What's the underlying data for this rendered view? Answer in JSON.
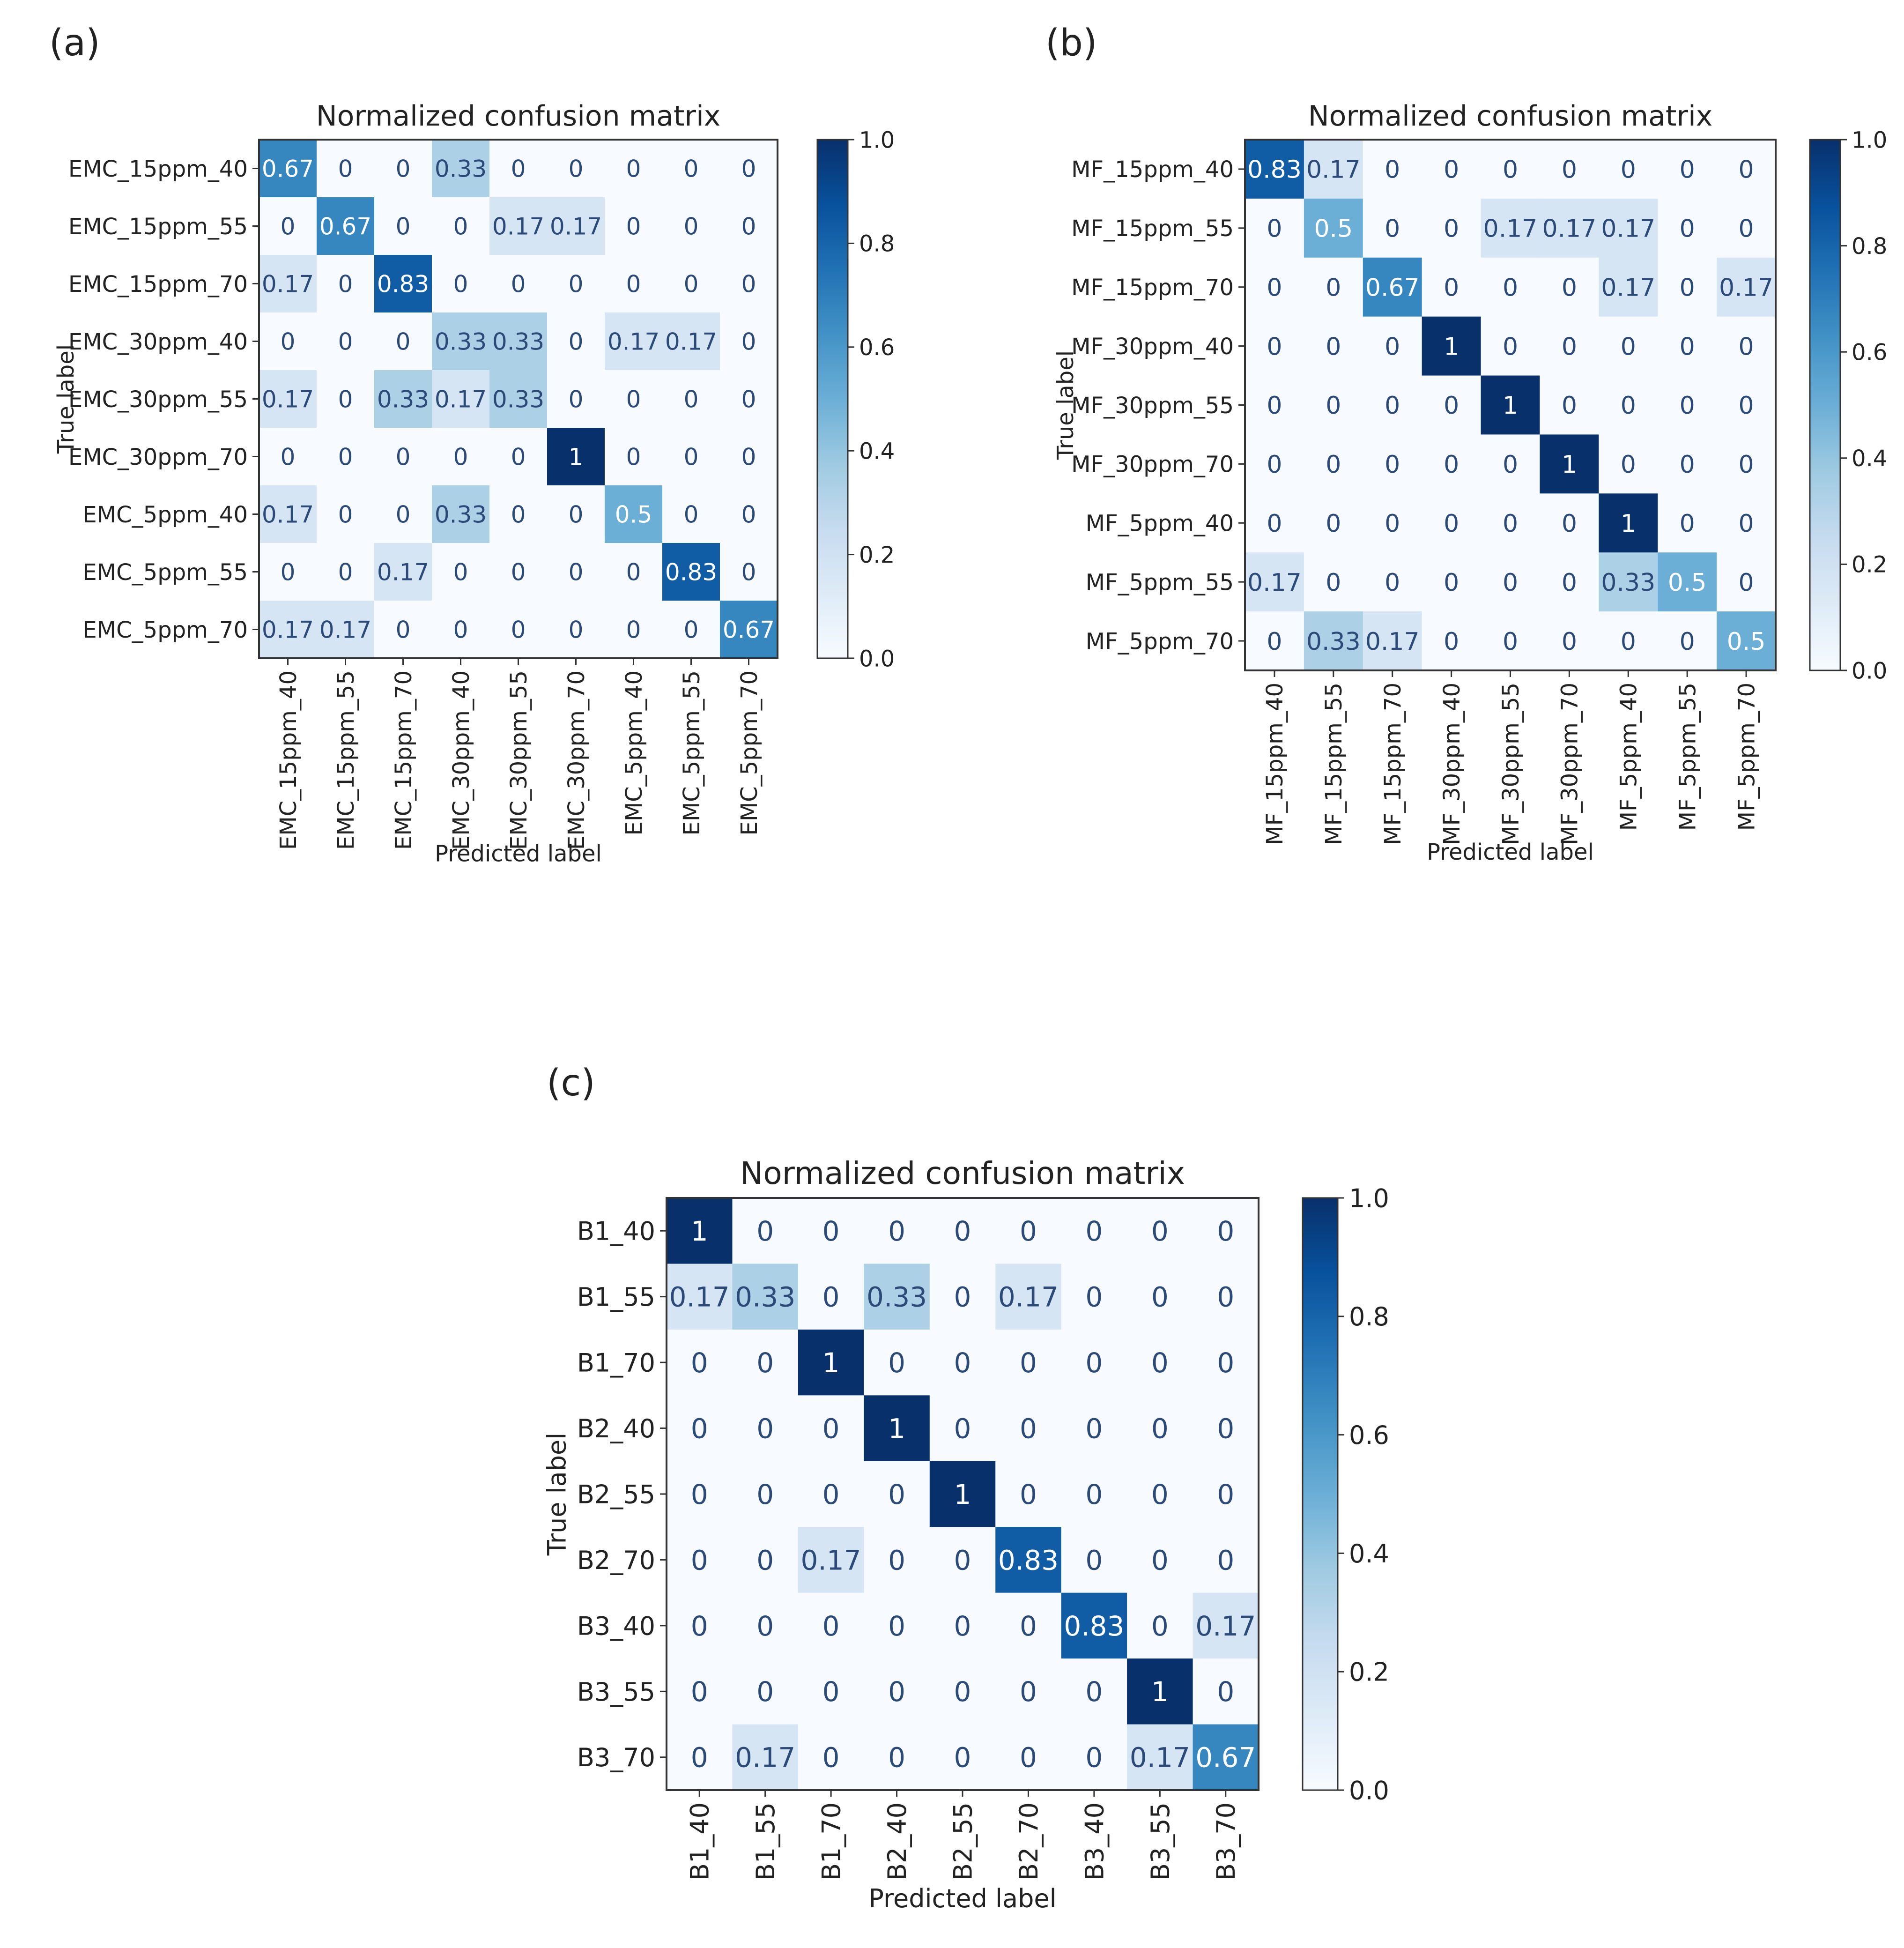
{
  "panels": [
    {
      "panel_label": "(a)",
      "chart_data": {
        "type": "heatmap",
        "title": "Normalized confusion matrix",
        "xlabel": "Predicted label",
        "ylabel": "True label",
        "x_categories": [
          "EMC_15ppm_40",
          "EMC_15ppm_55",
          "EMC_15ppm_70",
          "EMC_30ppm_40",
          "EMC_30ppm_55",
          "EMC_30ppm_70",
          "EMC_5ppm_40",
          "EMC_5ppm_55",
          "EMC_5ppm_70"
        ],
        "y_categories": [
          "EMC_15ppm_40",
          "EMC_15ppm_55",
          "EMC_15ppm_70",
          "EMC_30ppm_40",
          "EMC_30ppm_55",
          "EMC_30ppm_70",
          "EMC_5ppm_40",
          "EMC_5ppm_55",
          "EMC_5ppm_70"
        ],
        "values": [
          [
            0.67,
            0,
            0,
            0.33,
            0,
            0,
            0,
            0,
            0
          ],
          [
            0,
            0.67,
            0,
            0,
            0.17,
            0.17,
            0,
            0,
            0
          ],
          [
            0.17,
            0,
            0.83,
            0,
            0,
            0,
            0,
            0,
            0
          ],
          [
            0,
            0,
            0,
            0.33,
            0.33,
            0,
            0.17,
            0.17,
            0
          ],
          [
            0.17,
            0,
            0.33,
            0.17,
            0.33,
            0,
            0,
            0,
            0
          ],
          [
            0,
            0,
            0,
            0,
            0,
            1,
            0,
            0,
            0
          ],
          [
            0.17,
            0,
            0,
            0.33,
            0,
            0,
            0.5,
            0,
            0
          ],
          [
            0,
            0,
            0.17,
            0,
            0,
            0,
            0,
            0.83,
            0
          ],
          [
            0.17,
            0.17,
            0,
            0,
            0,
            0,
            0,
            0,
            0.67
          ]
        ],
        "colorbar": {
          "colormap": "Blues",
          "range": [
            0.0,
            1.0
          ],
          "ticks": [
            "0.0",
            "0.2",
            "0.4",
            "0.6",
            "0.8",
            "1.0"
          ]
        }
      }
    },
    {
      "panel_label": "(b)",
      "chart_data": {
        "type": "heatmap",
        "title": "Normalized confusion matrix",
        "xlabel": "Predicted label",
        "ylabel": "True label",
        "x_categories": [
          "MF_15ppm_40",
          "MF_15ppm_55",
          "MF_15ppm_70",
          "MF_30ppm_40",
          "MF_30ppm_55",
          "MF_30ppm_70",
          "MF_5ppm_40",
          "MF_5ppm_55",
          "MF_5ppm_70"
        ],
        "y_categories": [
          "MF_15ppm_40",
          "MF_15ppm_55",
          "MF_15ppm_70",
          "MF_30ppm_40",
          "MF_30ppm_55",
          "MF_30ppm_70",
          "MF_5ppm_40",
          "MF_5ppm_55",
          "MF_5ppm_70"
        ],
        "values": [
          [
            0.83,
            0.17,
            0,
            0,
            0,
            0,
            0,
            0,
            0
          ],
          [
            0,
            0.5,
            0,
            0,
            0.17,
            0.17,
            0.17,
            0,
            0
          ],
          [
            0,
            0,
            0.67,
            0,
            0,
            0,
            0.17,
            0,
            0.17
          ],
          [
            0,
            0,
            0,
            1,
            0,
            0,
            0,
            0,
            0
          ],
          [
            0,
            0,
            0,
            0,
            1,
            0,
            0,
            0,
            0
          ],
          [
            0,
            0,
            0,
            0,
            0,
            1,
            0,
            0,
            0
          ],
          [
            0,
            0,
            0,
            0,
            0,
            0,
            1,
            0,
            0
          ],
          [
            0.17,
            0,
            0,
            0,
            0,
            0,
            0.33,
            0.5,
            0
          ],
          [
            0,
            0.33,
            0.17,
            0,
            0,
            0,
            0,
            0,
            0.5
          ]
        ],
        "colorbar": {
          "colormap": "Blues",
          "range": [
            0.0,
            1.0
          ],
          "ticks": [
            "0.0",
            "0.2",
            "0.4",
            "0.6",
            "0.8",
            "1.0"
          ]
        }
      }
    },
    {
      "panel_label": "(c)",
      "chart_data": {
        "type": "heatmap",
        "title": "Normalized confusion matrix",
        "xlabel": "Predicted label",
        "ylabel": "True label",
        "x_categories": [
          "B1_40",
          "B1_55",
          "B1_70",
          "B2_40",
          "B2_55",
          "B2_70",
          "B3_40",
          "B3_55",
          "B3_70"
        ],
        "y_categories": [
          "B1_40",
          "B1_55",
          "B1_70",
          "B2_40",
          "B2_55",
          "B2_70",
          "B3_40",
          "B3_55",
          "B3_70"
        ],
        "values": [
          [
            1,
            0,
            0,
            0,
            0,
            0,
            0,
            0,
            0
          ],
          [
            0.17,
            0.33,
            0,
            0.33,
            0,
            0.17,
            0,
            0,
            0
          ],
          [
            0,
            0,
            1,
            0,
            0,
            0,
            0,
            0,
            0
          ],
          [
            0,
            0,
            0,
            1,
            0,
            0,
            0,
            0,
            0
          ],
          [
            0,
            0,
            0,
            0,
            1,
            0,
            0,
            0,
            0
          ],
          [
            0,
            0,
            0.17,
            0,
            0,
            0.83,
            0,
            0,
            0
          ],
          [
            0,
            0,
            0,
            0,
            0,
            0,
            0.83,
            0,
            0.17
          ],
          [
            0,
            0,
            0,
            0,
            0,
            0,
            0,
            1,
            0
          ],
          [
            0,
            0.17,
            0,
            0,
            0,
            0,
            0,
            0.17,
            0.67
          ]
        ],
        "colorbar": {
          "colormap": "Blues",
          "range": [
            0.0,
            1.0
          ],
          "ticks": [
            "0.0",
            "0.2",
            "0.4",
            "0.6",
            "0.8",
            "1.0"
          ]
        }
      }
    }
  ]
}
